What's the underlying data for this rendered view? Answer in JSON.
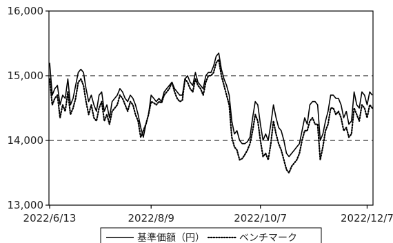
{
  "chart_data": {
    "type": "line",
    "title": "",
    "xlabel": "",
    "ylabel": "",
    "ylim": [
      13000,
      16000
    ],
    "y_ticks": [
      13000,
      14000,
      15000,
      16000
    ],
    "y_tick_labels": [
      "13,000",
      "14,000",
      "15,000",
      "16,000"
    ],
    "x_tick_labels": [
      "2022/6/13",
      "2022/8/9",
      "2022/10/7",
      "2022/12/7"
    ],
    "x_tick_index": [
      0,
      39,
      81,
      122
    ],
    "gridlines_y": [
      14000,
      15000
    ],
    "legend": {
      "placement": "bottom-center"
    },
    "series": [
      {
        "name": "基準価額（円）",
        "style": "solid",
        "values": [
          15200,
          14700,
          14800,
          14850,
          14550,
          14700,
          14650,
          14950,
          14550,
          14650,
          14850,
          15050,
          15100,
          15050,
          14800,
          14600,
          14700,
          14550,
          14450,
          14700,
          14750,
          14450,
          14550,
          14350,
          14600,
          14650,
          14700,
          14800,
          14750,
          14650,
          14600,
          14700,
          14650,
          14550,
          14400,
          14200,
          14050,
          14250,
          14400,
          14700,
          14650,
          14600,
          14650,
          14600,
          14750,
          14800,
          14850,
          14900,
          14800,
          14750,
          14700,
          14700,
          14950,
          15000,
          14900,
          14850,
          15050,
          14900,
          14850,
          14800,
          15000,
          15050,
          15050,
          15150,
          15300,
          15350,
          15100,
          14950,
          14850,
          14700,
          14300,
          14100,
          14150,
          14000,
          13950,
          13950,
          13980,
          14050,
          14350,
          14600,
          14550,
          14250,
          14000,
          14100,
          14000,
          14250,
          14550,
          14350,
          14200,
          14150,
          14000,
          13800,
          13750,
          13800,
          13850,
          13900,
          13950,
          14150,
          14350,
          14250,
          14550,
          14600,
          14600,
          14550,
          14000,
          14100,
          14300,
          14450,
          14700,
          14700,
          14650,
          14650,
          14550,
          14350,
          14450,
          14250,
          14300,
          14750,
          14550,
          14500,
          14750,
          14700,
          14550,
          14750,
          14700
        ],
        "note_units": "yen"
      },
      {
        "name": "ベンチマーク",
        "style": "dotted",
        "values": [
          14950,
          14550,
          14650,
          14700,
          14350,
          14550,
          14450,
          14750,
          14400,
          14500,
          14650,
          14900,
          14950,
          14850,
          14600,
          14400,
          14550,
          14350,
          14300,
          14500,
          14600,
          14300,
          14400,
          14250,
          14450,
          14500,
          14550,
          14700,
          14650,
          14550,
          14450,
          14600,
          14550,
          14400,
          14300,
          14050,
          14150,
          14250,
          14400,
          14600,
          14580,
          14550,
          14600,
          14580,
          14700,
          14750,
          14800,
          14900,
          14750,
          14650,
          14600,
          14620,
          14950,
          14900,
          14800,
          14750,
          14950,
          14850,
          14800,
          14700,
          14900,
          15000,
          15000,
          15050,
          15200,
          15250,
          15000,
          14850,
          14700,
          14550,
          14050,
          13900,
          13850,
          13700,
          13720,
          13780,
          13850,
          13950,
          14150,
          14400,
          14300,
          14000,
          13750,
          13800,
          13700,
          13950,
          14300,
          14100,
          13950,
          13850,
          13700,
          13550,
          13500,
          13600,
          13650,
          13700,
          13800,
          14000,
          14150,
          14150,
          14300,
          14350,
          14250,
          14250,
          13700,
          13900,
          14150,
          14250,
          14500,
          14500,
          14400,
          14450,
          14350,
          14150,
          14200,
          14050,
          14100,
          14500,
          14400,
          14300,
          14550,
          14500,
          14350,
          14550,
          14500
        ]
      }
    ]
  }
}
